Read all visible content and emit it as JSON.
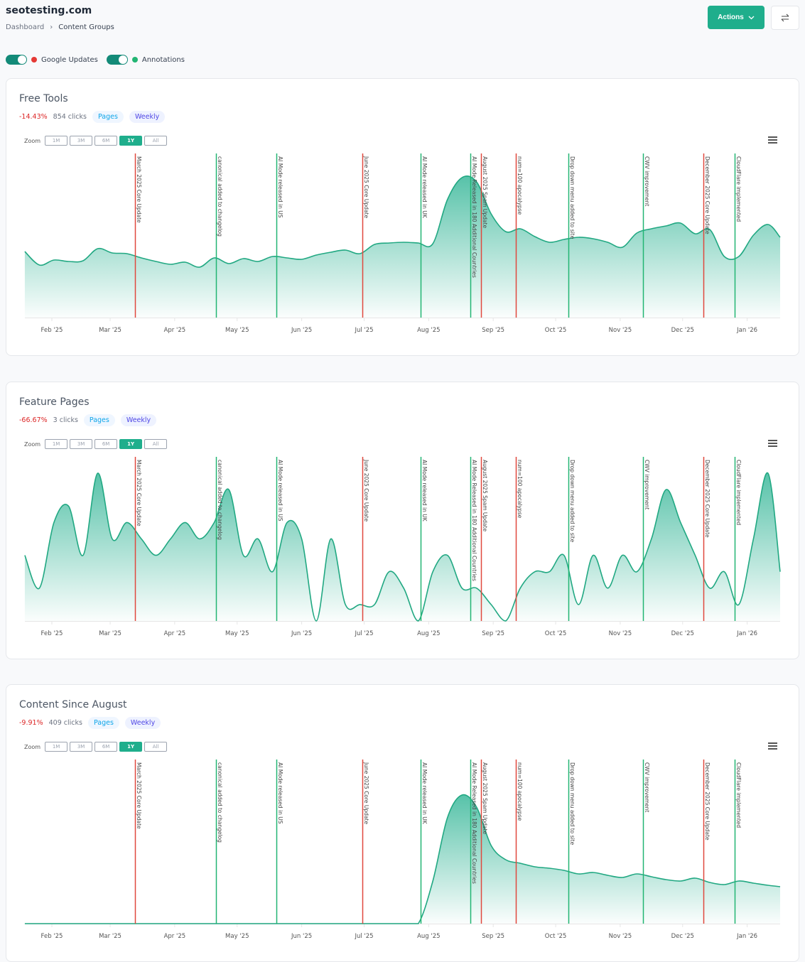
{
  "header": {
    "site_title": "seotesting.com",
    "breadcrumb": [
      "Dashboard",
      "Content Groups"
    ],
    "actions_label": "Actions",
    "swap_icon": "swap-arrows-icon"
  },
  "toggles": [
    {
      "label": "Google Updates",
      "on": true,
      "color": "#e53935"
    },
    {
      "label": "Annotations",
      "on": true,
      "color": "#22b573"
    }
  ],
  "zoom": {
    "label": "Zoom",
    "options": [
      "1M",
      "3M",
      "6M",
      "1Y",
      "All"
    ],
    "selected": "1Y"
  },
  "colors": {
    "accent": "#1fae8c",
    "line": "#21a882",
    "google_update": "#e0483e",
    "annotation": "#22b573",
    "negative": "#dc2626"
  },
  "annotations": [
    {
      "date": "2025-03-13",
      "label": "March 2025 Core Update",
      "type": "google-update"
    },
    {
      "date": "2025-04-21",
      "label": "canonical added to changelog",
      "type": "annotation"
    },
    {
      "date": "2025-05-20",
      "label": "AI Mode released in US",
      "type": "annotation"
    },
    {
      "date": "2025-06-30",
      "label": "June 2025 Core Update",
      "type": "google-update"
    },
    {
      "date": "2025-07-28",
      "label": "AI Mode released in UK",
      "type": "annotation"
    },
    {
      "date": "2025-08-21",
      "label": "AI Mode Released in 180 Additional Countries",
      "type": "annotation"
    },
    {
      "date": "2025-08-26",
      "label": "August 2025 Spam Update",
      "type": "google-update"
    },
    {
      "date": "2025-09-12",
      "label": "num=100 apocalypse",
      "type": "google-update"
    },
    {
      "date": "2025-10-07",
      "label": "Drop down menu added to site",
      "type": "annotation"
    },
    {
      "date": "2025-11-12",
      "label": "CWV improvement",
      "type": "annotation"
    },
    {
      "date": "2025-12-11",
      "label": "December 2025 Core Update",
      "type": "google-update"
    },
    {
      "date": "2025-12-26",
      "label": "CloudFlare implemented",
      "type": "annotation"
    }
  ],
  "x_ticks": [
    {
      "date": "2025-02-01",
      "label": "Feb '25"
    },
    {
      "date": "2025-03-01",
      "label": "Mar '25"
    },
    {
      "date": "2025-04-01",
      "label": "Apr '25"
    },
    {
      "date": "2025-05-01",
      "label": "May '25"
    },
    {
      "date": "2025-06-01",
      "label": "Jun '25"
    },
    {
      "date": "2025-07-01",
      "label": "Jul '25"
    },
    {
      "date": "2025-08-01",
      "label": "Aug '25"
    },
    {
      "date": "2025-09-01",
      "label": "Sep '25"
    },
    {
      "date": "2025-10-01",
      "label": "Oct '25"
    },
    {
      "date": "2025-11-01",
      "label": "Nov '25"
    },
    {
      "date": "2025-12-01",
      "label": "Dec '25"
    },
    {
      "date": "2026-01-01",
      "label": "Jan '26"
    }
  ],
  "cards": [
    {
      "title": "Free Tools",
      "change": "-14.43%",
      "clicks": "854 clicks",
      "pill_pages": "Pages",
      "pill_weekly": "Weekly"
    },
    {
      "title": "Feature Pages",
      "change": "-66.67%",
      "clicks": "3 clicks",
      "pill_pages": "Pages",
      "pill_weekly": "Weekly"
    },
    {
      "title": "Content Since August",
      "change": "-9.91%",
      "clicks": "409 clicks",
      "pill_pages": "Pages",
      "pill_weekly": "Weekly"
    }
  ],
  "chart_data": [
    {
      "type": "area",
      "x_start": "2025-01-19",
      "x_interval": "weekly",
      "xlim": [
        "2025-01-19",
        "2026-01-18"
      ],
      "ylim": [
        0,
        231
      ],
      "grid": false,
      "legend": "none",
      "values": [
        93,
        74,
        81,
        79,
        80,
        97,
        91,
        90,
        84,
        79,
        75,
        78,
        71,
        84,
        76,
        83,
        79,
        86,
        84,
        82,
        88,
        92,
        95,
        90,
        103,
        105,
        106,
        105,
        104,
        166,
        197,
        191,
        146,
        121,
        125,
        114,
        106,
        110,
        113,
        111,
        106,
        99,
        119,
        125,
        129,
        133,
        118,
        124,
        86,
        86,
        116,
        131,
        113
      ]
    },
    {
      "type": "area",
      "x_start": "2025-01-19",
      "x_interval": "weekly",
      "xlim": [
        "2025-01-19",
        "2026-01-18"
      ],
      "ylim": [
        0,
        10
      ],
      "grid": false,
      "legend": "none",
      "values": [
        4,
        2,
        6,
        7,
        4,
        9,
        5,
        6,
        5,
        4,
        5,
        6,
        5,
        6,
        8,
        4,
        5,
        3,
        6,
        5,
        0,
        5,
        1,
        1,
        1,
        3,
        2,
        0,
        3,
        4,
        2,
        2,
        1,
        0,
        2,
        3,
        3,
        4,
        1,
        4,
        2,
        4,
        3,
        5,
        8,
        6,
        4,
        2,
        3,
        1,
        5,
        9,
        3
      ]
    },
    {
      "type": "area",
      "x_start": "2025-01-19",
      "x_interval": "weekly",
      "xlim": [
        "2025-01-19",
        "2026-01-18"
      ],
      "ylim": [
        0,
        231
      ],
      "grid": false,
      "legend": "none",
      "values": [
        0,
        0,
        0,
        0,
        0,
        0,
        0,
        0,
        0,
        0,
        0,
        0,
        0,
        0,
        0,
        0,
        0,
        0,
        0,
        0,
        0,
        0,
        0,
        0,
        0,
        0,
        0,
        0,
        60,
        149,
        181,
        164,
        110,
        90,
        85,
        80,
        78,
        75,
        70,
        72,
        68,
        65,
        70,
        66,
        62,
        60,
        64,
        58,
        55,
        60,
        57,
        54,
        52
      ]
    }
  ]
}
